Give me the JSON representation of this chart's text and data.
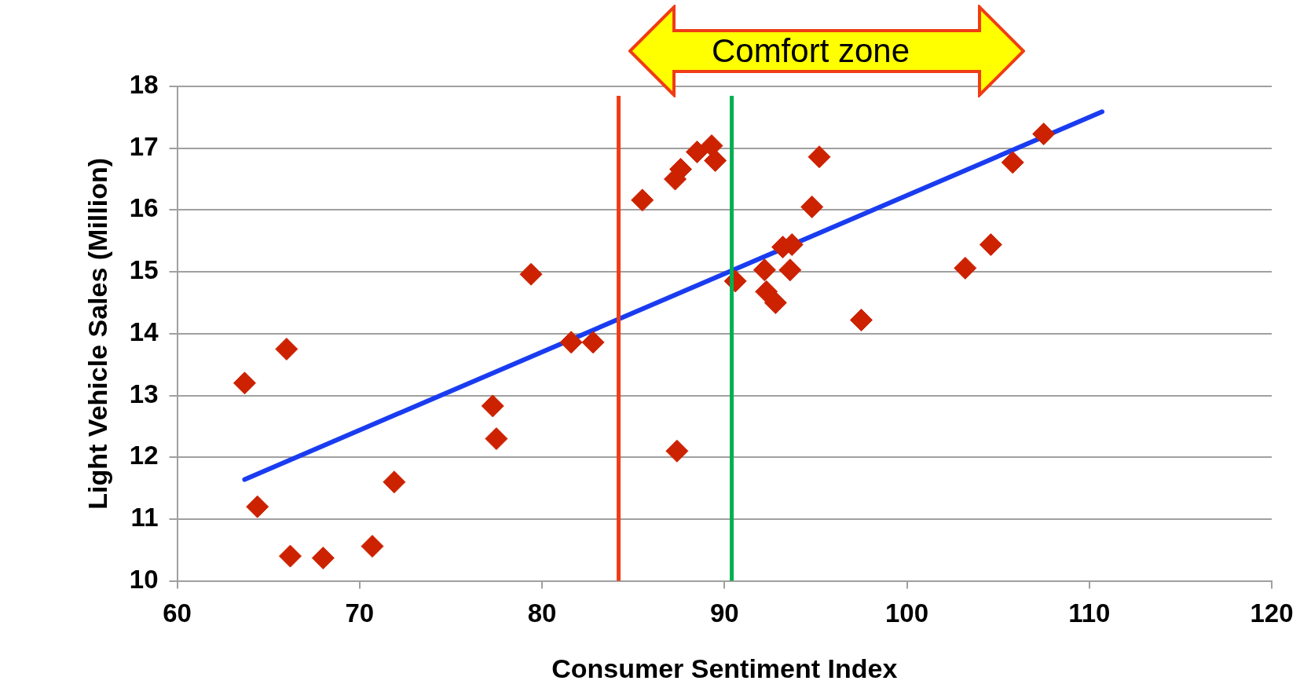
{
  "chart_data": {
    "type": "scatter",
    "xlabel": "Consumer Sentiment Index",
    "ylabel": "Light Vehicle Sales (Million)",
    "xlim": [
      60,
      120
    ],
    "xticks": [
      60,
      70,
      80,
      90,
      100,
      110,
      120
    ],
    "ylim": [
      10,
      18
    ],
    "yticks": [
      10,
      11,
      12,
      13,
      14,
      15,
      16,
      17,
      18
    ],
    "grid": "y",
    "annotations": [
      "Comfort zone"
    ],
    "series": [
      {
        "type": "scatter",
        "color": "#cc2200",
        "marker": "diamond",
        "x": [
          63.7,
          64.4,
          66.0,
          66.2,
          68.0,
          70.7,
          71.9,
          77.3,
          77.5,
          79.4,
          81.6,
          82.8,
          85.5,
          87.3,
          87.6,
          87.4,
          88.5,
          89.3,
          89.5,
          90.6,
          92.2,
          92.3,
          92.8,
          93.2,
          93.7,
          93.6,
          94.8,
          95.2,
          97.5,
          103.2,
          104.6,
          105.8,
          107.5
        ],
        "values": [
          13.2,
          11.2,
          13.75,
          10.4,
          10.37,
          10.56,
          11.6,
          12.83,
          12.3,
          14.96,
          13.86,
          13.86,
          16.16,
          16.5,
          16.66,
          12.1,
          16.94,
          17.04,
          16.8,
          14.85,
          15.03,
          14.68,
          14.5,
          15.4,
          15.44,
          15.03,
          16.05,
          16.86,
          14.22,
          15.06,
          15.44,
          16.77,
          17.23
        ]
      },
      {
        "type": "line",
        "color": "#1a3cf0",
        "marker": "none",
        "x": [
          63.7,
          110.7
        ],
        "values": [
          11.64,
          17.59
        ]
      }
    ],
    "ref_lines": [
      {
        "axis": "x",
        "value": 84.2,
        "color": "#f03c14"
      },
      {
        "axis": "x",
        "value": 90.4,
        "color": "#00b050"
      }
    ]
  }
}
